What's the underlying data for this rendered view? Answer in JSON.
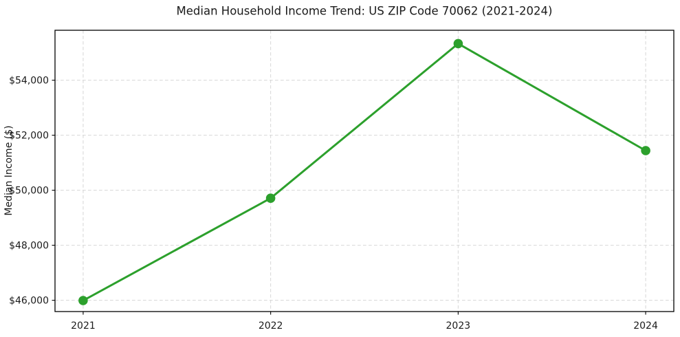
{
  "chart_data": {
    "type": "line",
    "title": "Median Household Income Trend: US ZIP Code 70062 (2021-2024)",
    "xlabel": "",
    "ylabel": "Median Income ($)",
    "categories": [
      "2021",
      "2022",
      "2023",
      "2024"
    ],
    "values": [
      45990,
      49710,
      55330,
      51440
    ],
    "yticks": [
      {
        "value": 46000,
        "label": "$46,000"
      },
      {
        "value": 48000,
        "label": "$48,000"
      },
      {
        "value": 50000,
        "label": "$50,000"
      },
      {
        "value": 52000,
        "label": "$52,000"
      },
      {
        "value": 54000,
        "label": "$54,000"
      }
    ],
    "ylim": [
      45590,
      55815
    ],
    "grid": true,
    "grid_style": "dashed",
    "legend_position": "none",
    "line_color": "#2ca02c",
    "marker": "circle",
    "grid_color": "#d6d6d6",
    "axis_color": "#000000",
    "background": "#ffffff"
  }
}
